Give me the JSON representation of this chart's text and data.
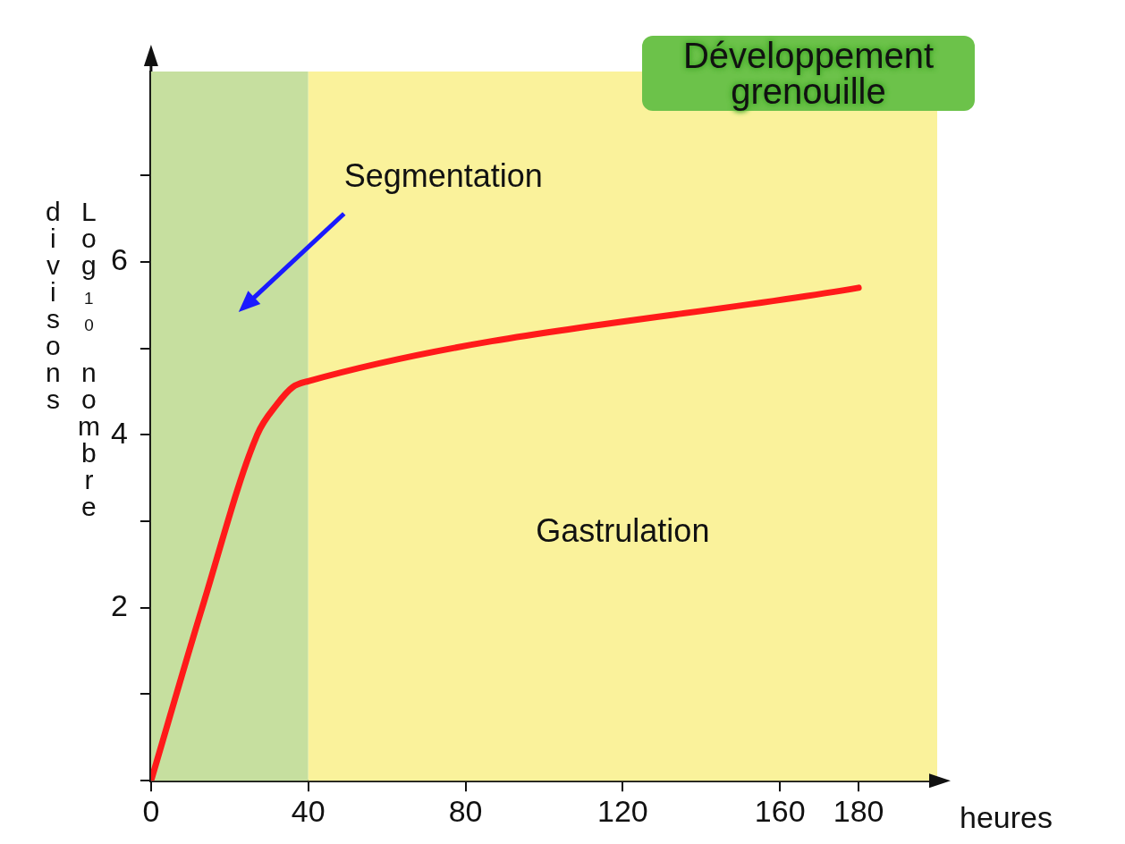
{
  "chart_data": {
    "type": "line",
    "title": "Développement grenouille",
    "xlabel": "heures",
    "ylabel": "Log₁₀ nombre divisons",
    "x": [
      0,
      13,
      27,
      32,
      36,
      40,
      180
    ],
    "series": [
      {
        "color": "#ff1a1a",
        "values": [
          0,
          2,
          4,
          4.35,
          4.55,
          4.62,
          5.7
        ]
      }
    ],
    "xlim": [
      0,
      200
    ],
    "xticks": [
      0,
      40,
      80,
      120,
      160,
      180
    ],
    "ylim": [
      0,
      8.2
    ],
    "yticks": [
      {
        "value": 0,
        "label": null
      },
      {
        "value": 1,
        "label": null
      },
      2,
      {
        "value": 3,
        "label": null
      },
      4,
      {
        "value": 5,
        "label": null
      },
      6,
      {
        "value": 7,
        "label": null
      }
    ],
    "bands": [
      {
        "axis": "x",
        "from": 0,
        "to": 40,
        "label": "Segmentation",
        "color": "#c6df9f"
      },
      {
        "axis": "x",
        "from": 40,
        "to": 200,
        "label": "Gastrulation",
        "color": "#faf29b"
      }
    ],
    "grid": false,
    "legend": false,
    "marker": "none",
    "line_style": "solid"
  }
}
